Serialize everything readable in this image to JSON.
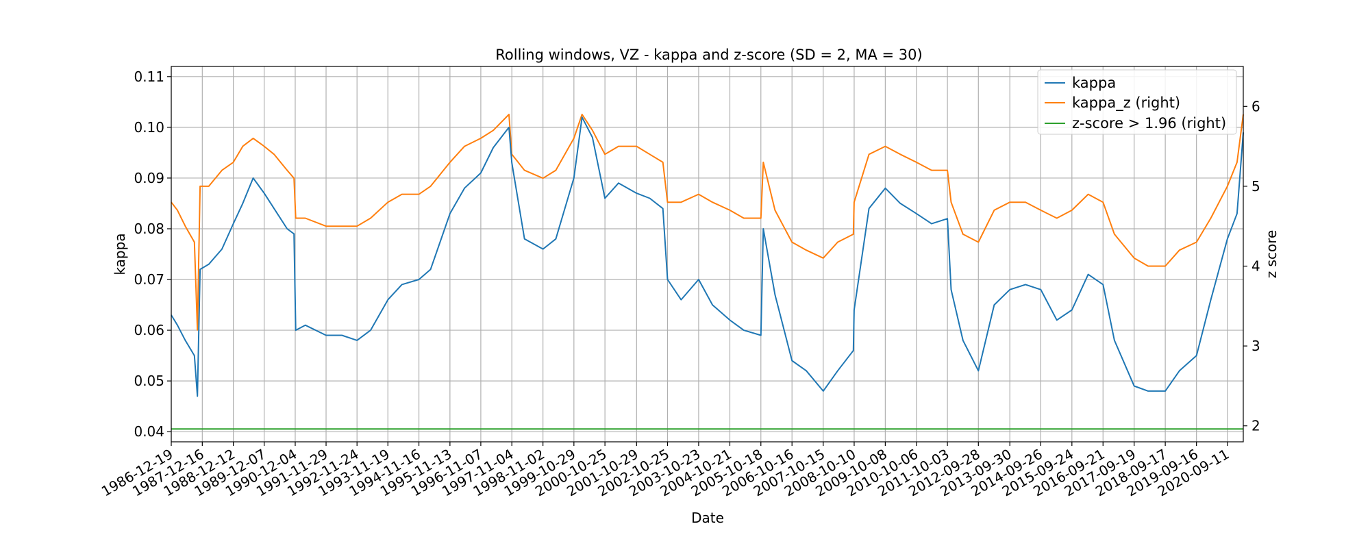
{
  "chart_data": {
    "type": "line",
    "title": "Rolling windows, VZ - kappa and z-score (SD = 2, MA = 30)",
    "xlabel": "Date",
    "ylabel": "kappa",
    "y2label": "z score",
    "xlim": [
      "1986-12-19",
      "2021-03-15"
    ],
    "ylim": [
      0.038,
      0.112
    ],
    "y2lim": [
      1.8,
      6.5
    ],
    "grid": true,
    "legend_position": "top-right",
    "x_ticks": [
      "1986-12-19",
      "1987-12-16",
      "1988-12-12",
      "1989-12-07",
      "1990-12-04",
      "1991-11-29",
      "1992-11-24",
      "1993-11-19",
      "1994-11-16",
      "1995-11-13",
      "1996-11-07",
      "1997-11-04",
      "1998-11-02",
      "1999-10-29",
      "2000-10-25",
      "2001-10-29",
      "2002-10-25",
      "2003-10-23",
      "2004-10-21",
      "2005-10-18",
      "2006-10-16",
      "2007-10-15",
      "2008-10-10",
      "2009-10-08",
      "2010-10-06",
      "2011-10-03",
      "2012-09-28",
      "2013-09-30",
      "2014-09-26",
      "2015-09-24",
      "2016-09-21",
      "2017-09-19",
      "2018-09-17",
      "2019-09-16",
      "2020-09-11"
    ],
    "y_ticks": [
      "0.04",
      "0.05",
      "0.06",
      "0.07",
      "0.08",
      "0.09",
      "0.10",
      "0.11"
    ],
    "y2_ticks": [
      "2",
      "3",
      "4",
      "5",
      "6"
    ],
    "series": [
      {
        "name": "kappa",
        "axis": "left",
        "color": "#1f77b4",
        "x": [
          "1986-12-19",
          "1987-03-01",
          "1987-06-01",
          "1987-09-15",
          "1987-10-20",
          "1987-11-20",
          "1988-03-01",
          "1988-08-01",
          "1988-12-12",
          "1989-04-01",
          "1989-08-01",
          "1989-12-07",
          "1990-04-01",
          "1990-09-01",
          "1990-11-20",
          "1990-12-10",
          "1991-04-01",
          "1991-11-29",
          "1992-06-01",
          "1992-11-24",
          "1993-05-01",
          "1993-11-19",
          "1994-05-01",
          "1994-11-16",
          "1995-04-01",
          "1995-11-13",
          "1996-05-01",
          "1996-11-07",
          "1997-04-01",
          "1997-10-01",
          "1997-11-04",
          "1998-04-01",
          "1998-11-02",
          "1999-04-01",
          "1999-10-29",
          "2000-02-01",
          "2000-06-01",
          "2000-10-25",
          "2001-04-01",
          "2001-10-29",
          "2002-04-01",
          "2002-09-01",
          "2002-10-25",
          "2003-04-01",
          "2003-10-23",
          "2004-04-01",
          "2004-10-21",
          "2005-04-01",
          "2005-10-18",
          "2005-11-15",
          "2006-04-01",
          "2006-10-16",
          "2007-04-01",
          "2007-10-15",
          "2008-04-01",
          "2008-10-01",
          "2008-10-10",
          "2009-04-01",
          "2009-10-08",
          "2010-04-01",
          "2010-10-06",
          "2011-04-01",
          "2011-10-03",
          "2011-11-15",
          "2012-04-01",
          "2012-09-28",
          "2013-04-01",
          "2013-09-30",
          "2014-04-01",
          "2014-09-26",
          "2015-04-01",
          "2015-09-24",
          "2016-04-01",
          "2016-09-21",
          "2017-02-01",
          "2017-09-19",
          "2018-03-01",
          "2018-09-17",
          "2019-03-01",
          "2019-09-16",
          "2020-03-01",
          "2020-09-11",
          "2021-01-01",
          "2021-03-15"
        ],
        "values": [
          0.063,
          0.061,
          0.058,
          0.055,
          0.047,
          0.072,
          0.073,
          0.076,
          0.081,
          0.085,
          0.09,
          0.087,
          0.084,
          0.08,
          0.079,
          0.06,
          0.061,
          0.059,
          0.059,
          0.058,
          0.06,
          0.066,
          0.069,
          0.07,
          0.072,
          0.083,
          0.088,
          0.091,
          0.096,
          0.1,
          0.093,
          0.078,
          0.076,
          0.078,
          0.09,
          0.102,
          0.098,
          0.086,
          0.089,
          0.087,
          0.086,
          0.084,
          0.07,
          0.066,
          0.07,
          0.065,
          0.062,
          0.06,
          0.059,
          0.08,
          0.067,
          0.054,
          0.052,
          0.048,
          0.052,
          0.056,
          0.064,
          0.084,
          0.088,
          0.085,
          0.083,
          0.081,
          0.082,
          0.068,
          0.058,
          0.052,
          0.065,
          0.068,
          0.069,
          0.068,
          0.062,
          0.064,
          0.071,
          0.069,
          0.058,
          0.049,
          0.048,
          0.048,
          0.052,
          0.055,
          0.066,
          0.078,
          0.083,
          0.099
        ]
      },
      {
        "name": "kappa_z (right)",
        "axis": "right",
        "color": "#ff7f0e",
        "x": [
          "1986-12-19",
          "1987-03-01",
          "1987-06-01",
          "1987-09-15",
          "1987-10-20",
          "1987-11-20",
          "1988-03-01",
          "1988-08-01",
          "1988-12-12",
          "1989-04-01",
          "1989-08-01",
          "1989-12-07",
          "1990-04-01",
          "1990-09-01",
          "1990-11-20",
          "1990-12-10",
          "1991-04-01",
          "1991-11-29",
          "1992-06-01",
          "1992-11-24",
          "1993-05-01",
          "1993-11-19",
          "1994-05-01",
          "1994-11-16",
          "1995-04-01",
          "1995-11-13",
          "1996-05-01",
          "1996-11-07",
          "1997-04-01",
          "1997-10-01",
          "1997-11-04",
          "1998-04-01",
          "1998-11-02",
          "1999-04-01",
          "1999-10-29",
          "2000-02-01",
          "2000-06-01",
          "2000-10-25",
          "2001-04-01",
          "2001-10-29",
          "2002-04-01",
          "2002-09-01",
          "2002-10-25",
          "2003-04-01",
          "2003-10-23",
          "2004-04-01",
          "2004-10-21",
          "2005-04-01",
          "2005-10-18",
          "2005-11-15",
          "2006-04-01",
          "2006-10-16",
          "2007-04-01",
          "2007-10-15",
          "2008-04-01",
          "2008-10-01",
          "2008-10-10",
          "2009-04-01",
          "2009-10-08",
          "2010-04-01",
          "2010-10-06",
          "2011-04-01",
          "2011-10-03",
          "2011-11-15",
          "2012-04-01",
          "2012-09-28",
          "2013-04-01",
          "2013-09-30",
          "2014-04-01",
          "2014-09-26",
          "2015-04-01",
          "2015-09-24",
          "2016-04-01",
          "2016-09-21",
          "2017-02-01",
          "2017-09-19",
          "2018-03-01",
          "2018-09-17",
          "2019-03-01",
          "2019-09-16",
          "2020-03-01",
          "2020-09-11",
          "2021-01-01",
          "2021-03-15"
        ],
        "values": [
          4.8,
          4.7,
          4.5,
          4.3,
          3.2,
          5.0,
          5.0,
          5.2,
          5.3,
          5.5,
          5.6,
          5.5,
          5.4,
          5.2,
          5.1,
          4.6,
          4.6,
          4.5,
          4.5,
          4.5,
          4.6,
          4.8,
          4.9,
          4.9,
          5.0,
          5.3,
          5.5,
          5.6,
          5.7,
          5.9,
          5.4,
          5.2,
          5.1,
          5.2,
          5.6,
          5.9,
          5.7,
          5.4,
          5.5,
          5.5,
          5.4,
          5.3,
          4.8,
          4.8,
          4.9,
          4.8,
          4.7,
          4.6,
          4.6,
          5.3,
          4.7,
          4.3,
          4.2,
          4.1,
          4.3,
          4.4,
          4.8,
          5.4,
          5.5,
          5.4,
          5.3,
          5.2,
          5.2,
          4.8,
          4.4,
          4.3,
          4.7,
          4.8,
          4.8,
          4.7,
          4.6,
          4.7,
          4.9,
          4.8,
          4.4,
          4.1,
          4.0,
          4.0,
          4.2,
          4.3,
          4.6,
          5.0,
          5.3,
          5.9
        ]
      },
      {
        "name": "z-score > 1.96 (right)",
        "axis": "right",
        "color": "#2ca02c",
        "x": [
          "1986-12-19",
          "2021-03-15"
        ],
        "values": [
          1.96,
          1.96
        ]
      }
    ]
  }
}
